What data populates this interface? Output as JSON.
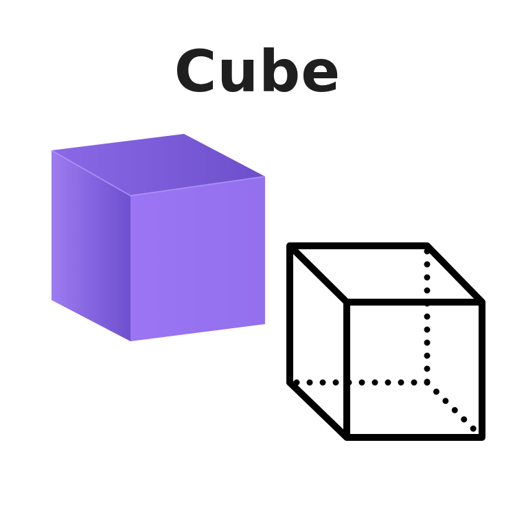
{
  "title": "Cube",
  "colors": {
    "solid_top": "#7b5ad8",
    "solid_left": "#9a76ef",
    "solid_left_dark": "#6f52cf",
    "solid_front": "#9b75f3",
    "outline_stroke": "#000000",
    "title_text": "#1f1f1f",
    "background": "#ffffff"
  },
  "figures": {
    "solid": {
      "shape": "cube",
      "style": "shaded"
    },
    "wireframe": {
      "shape": "cube",
      "style": "outline with dotted hidden edges"
    }
  }
}
